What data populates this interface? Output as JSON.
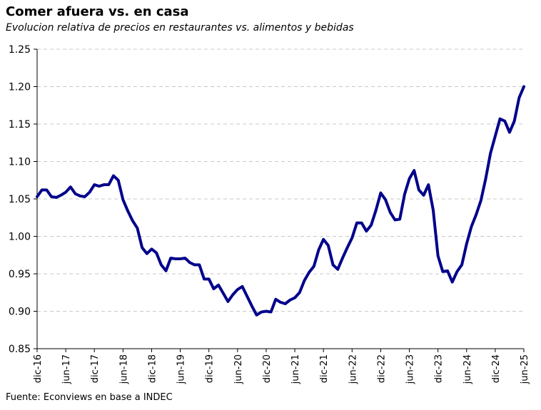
{
  "chart_data": {
    "type": "line",
    "title": "Comer afuera vs. en casa",
    "subtitle": "Evolucion relativa de precios en restaurantes vs. alimentos y bebidas",
    "source": "Fuente: Econviews en base a INDEC",
    "xlabel": "",
    "ylabel": "",
    "ylim": [
      0.85,
      1.25
    ],
    "yticks": [
      "0.85",
      "0.90",
      "0.95",
      "1.00",
      "1.05",
      "1.10",
      "1.15",
      "1.20",
      "1.25"
    ],
    "ytick_values": [
      0.85,
      0.9,
      0.95,
      1.0,
      1.05,
      1.1,
      1.15,
      1.2,
      1.25
    ],
    "xtick_labels": [
      "dic-16",
      "jun-17",
      "dic-17",
      "jun-18",
      "dic-18",
      "jun-19",
      "dic-19",
      "jun-20",
      "dic-20",
      "jun-21",
      "dic-21",
      "jun-22",
      "dic-22",
      "jun-23",
      "dic-23",
      "jun-24",
      "dic-24",
      "jun-25"
    ],
    "x_start": "dic-16",
    "x_end": "jun-25",
    "grid": true,
    "line_color": "#00008B",
    "grid_color": "#c8c8c8",
    "series": [
      {
        "values": [
          1.053,
          1.062,
          1.062,
          1.053,
          1.052,
          1.055,
          1.059,
          1.066,
          1.057,
          1.054,
          1.053,
          1.059,
          1.069,
          1.067,
          1.069,
          1.069,
          1.081,
          1.075,
          1.049,
          1.034,
          1.021,
          1.011,
          0.985,
          0.977,
          0.983,
          0.978,
          0.962,
          0.954,
          0.971,
          0.97,
          0.97,
          0.971,
          0.965,
          0.962,
          0.962,
          0.943,
          0.943,
          0.93,
          0.935,
          0.924,
          0.913,
          0.922,
          0.929,
          0.933,
          0.92,
          0.907,
          0.895,
          0.899,
          0.9,
          0.899,
          0.916,
          0.912,
          0.91,
          0.915,
          0.918,
          0.925,
          0.941,
          0.952,
          0.96,
          0.982,
          0.996,
          0.988,
          0.962,
          0.956,
          0.971,
          0.985,
          0.998,
          1.018,
          1.018,
          1.007,
          1.015,
          1.035,
          1.058,
          1.049,
          1.032,
          1.022,
          1.023,
          1.056,
          1.077,
          1.088,
          1.062,
          1.055,
          1.069,
          1.035,
          0.974,
          0.953,
          0.954,
          0.939,
          0.953,
          0.962,
          0.99,
          1.013,
          1.029,
          1.048,
          1.077,
          1.111,
          1.134,
          1.157,
          1.154,
          1.139,
          1.154,
          1.185,
          1.2
        ]
      }
    ]
  }
}
